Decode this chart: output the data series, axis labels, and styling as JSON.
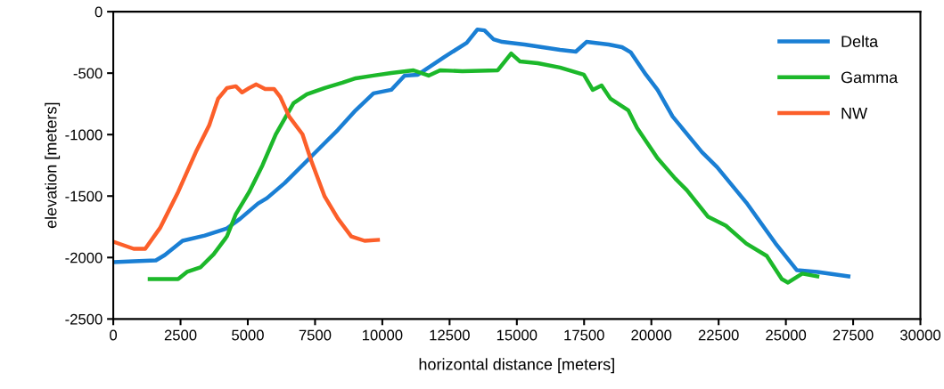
{
  "chart_data": {
    "type": "line",
    "xlabel": "horizontal distance [meters]",
    "ylabel": "elevation [meters]",
    "xlim": [
      0,
      30000
    ],
    "xticks": [
      0,
      2500,
      5000,
      7500,
      10000,
      12500,
      15000,
      17500,
      20000,
      22500,
      25000,
      27500,
      30000
    ],
    "ylim": [
      -2500,
      0
    ],
    "yticks": [
      -2500,
      -2000,
      -1500,
      -1000,
      -500,
      0
    ],
    "grid": false,
    "legend": "top right",
    "marker": "none",
    "line_style": "solid",
    "series": [
      {
        "name": "Delta",
        "color": "#1a7fd4",
        "x": [
          0,
          759,
          1584,
          1915,
          2575,
          3400,
          4225,
          4720,
          5380,
          5711,
          6371,
          7196,
          7856,
          8351,
          9012,
          9672,
          10332,
          10827,
          11322,
          12313,
          13137,
          13534,
          13798,
          14128,
          14458,
          15284,
          16604,
          17193,
          17589,
          18414,
          18909,
          19239,
          19800,
          20229,
          20790,
          21879,
          22440,
          23529,
          24618,
          25410,
          26169,
          27324
        ],
        "values": [
          -2038,
          -2030,
          -2023,
          -1980,
          -1864,
          -1821,
          -1763,
          -1684,
          -1561,
          -1517,
          -1394,
          -1214,
          -1069,
          -961,
          -802,
          -665,
          -636,
          -520,
          -513,
          -368,
          -253,
          -145,
          -152,
          -224,
          -246,
          -267,
          -311,
          -325,
          -246,
          -267,
          -289,
          -332,
          -513,
          -636,
          -853,
          -1142,
          -1264,
          -1553,
          -1886,
          -2103,
          -2117,
          -2153
        ]
      },
      {
        "name": "Gamma",
        "color": "#1cb82a",
        "x": [
          1354,
          2410,
          2740,
          3235,
          3730,
          4225,
          4555,
          5051,
          5545,
          6041,
          6701,
          7196,
          7856,
          8517,
          9012,
          9672,
          10332,
          11158,
          11719,
          12148,
          12973,
          14293,
          14789,
          15119,
          15779,
          16604,
          17490,
          17820,
          18150,
          18480,
          19140,
          19470,
          20229,
          20889,
          21318,
          22110,
          22770,
          23529,
          24288,
          24849,
          25080,
          25608,
          26169
        ],
        "values": [
          -2175,
          -2175,
          -2117,
          -2081,
          -1973,
          -1828,
          -1647,
          -1467,
          -1250,
          -997,
          -744,
          -672,
          -621,
          -578,
          -542,
          -520,
          -499,
          -477,
          -520,
          -477,
          -484,
          -477,
          -340,
          -405,
          -419,
          -455,
          -513,
          -636,
          -600,
          -708,
          -802,
          -946,
          -1192,
          -1358,
          -1452,
          -1669,
          -1741,
          -1886,
          -1987,
          -2175,
          -2204,
          -2131,
          -2153
        ]
      },
      {
        "name": "NW",
        "color": "#fc5f2a",
        "x": [
          0,
          759,
          1188,
          1749,
          2410,
          3069,
          3565,
          3896,
          4225,
          4555,
          4787,
          5051,
          5315,
          5645,
          5975,
          6206,
          6536,
          7031,
          7361,
          7856,
          8351,
          8846,
          9341,
          9837
        ],
        "values": [
          -1871,
          -1929,
          -1929,
          -1756,
          -1467,
          -1142,
          -925,
          -708,
          -621,
          -607,
          -657,
          -621,
          -592,
          -629,
          -629,
          -694,
          -853,
          -997,
          -1214,
          -1503,
          -1684,
          -1828,
          -1864,
          -1857
        ]
      }
    ]
  }
}
